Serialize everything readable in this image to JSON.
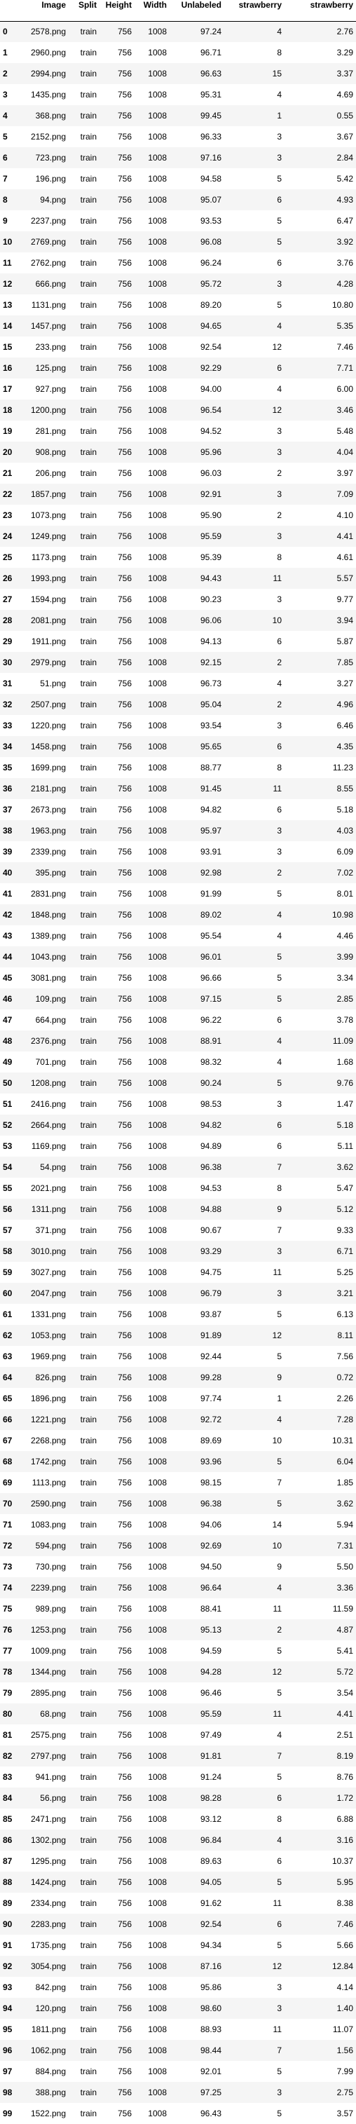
{
  "columns": [
    "",
    "Image",
    "Split",
    "Height",
    "Width",
    "Unlabeled",
    "strawberry",
    "strawberry"
  ],
  "rows": [
    [
      "0",
      "2578.png",
      "train",
      "756",
      "1008",
      "97.24",
      "4",
      "2.76"
    ],
    [
      "1",
      "2960.png",
      "train",
      "756",
      "1008",
      "96.71",
      "8",
      "3.29"
    ],
    [
      "2",
      "2994.png",
      "train",
      "756",
      "1008",
      "96.63",
      "15",
      "3.37"
    ],
    [
      "3",
      "1435.png",
      "train",
      "756",
      "1008",
      "95.31",
      "4",
      "4.69"
    ],
    [
      "4",
      "368.png",
      "train",
      "756",
      "1008",
      "99.45",
      "1",
      "0.55"
    ],
    [
      "5",
      "2152.png",
      "train",
      "756",
      "1008",
      "96.33",
      "3",
      "3.67"
    ],
    [
      "6",
      "723.png",
      "train",
      "756",
      "1008",
      "97.16",
      "3",
      "2.84"
    ],
    [
      "7",
      "196.png",
      "train",
      "756",
      "1008",
      "94.58",
      "5",
      "5.42"
    ],
    [
      "8",
      "94.png",
      "train",
      "756",
      "1008",
      "95.07",
      "6",
      "4.93"
    ],
    [
      "9",
      "2237.png",
      "train",
      "756",
      "1008",
      "93.53",
      "5",
      "6.47"
    ],
    [
      "10",
      "2769.png",
      "train",
      "756",
      "1008",
      "96.08",
      "5",
      "3.92"
    ],
    [
      "11",
      "2762.png",
      "train",
      "756",
      "1008",
      "96.24",
      "6",
      "3.76"
    ],
    [
      "12",
      "666.png",
      "train",
      "756",
      "1008",
      "95.72",
      "3",
      "4.28"
    ],
    [
      "13",
      "1131.png",
      "train",
      "756",
      "1008",
      "89.20",
      "5",
      "10.80"
    ],
    [
      "14",
      "1457.png",
      "train",
      "756",
      "1008",
      "94.65",
      "4",
      "5.35"
    ],
    [
      "15",
      "233.png",
      "train",
      "756",
      "1008",
      "92.54",
      "12",
      "7.46"
    ],
    [
      "16",
      "125.png",
      "train",
      "756",
      "1008",
      "92.29",
      "6",
      "7.71"
    ],
    [
      "17",
      "927.png",
      "train",
      "756",
      "1008",
      "94.00",
      "4",
      "6.00"
    ],
    [
      "18",
      "1200.png",
      "train",
      "756",
      "1008",
      "96.54",
      "12",
      "3.46"
    ],
    [
      "19",
      "281.png",
      "train",
      "756",
      "1008",
      "94.52",
      "3",
      "5.48"
    ],
    [
      "20",
      "908.png",
      "train",
      "756",
      "1008",
      "95.96",
      "3",
      "4.04"
    ],
    [
      "21",
      "206.png",
      "train",
      "756",
      "1008",
      "96.03",
      "2",
      "3.97"
    ],
    [
      "22",
      "1857.png",
      "train",
      "756",
      "1008",
      "92.91",
      "3",
      "7.09"
    ],
    [
      "23",
      "1073.png",
      "train",
      "756",
      "1008",
      "95.90",
      "2",
      "4.10"
    ],
    [
      "24",
      "1249.png",
      "train",
      "756",
      "1008",
      "95.59",
      "3",
      "4.41"
    ],
    [
      "25",
      "1173.png",
      "train",
      "756",
      "1008",
      "95.39",
      "8",
      "4.61"
    ],
    [
      "26",
      "1993.png",
      "train",
      "756",
      "1008",
      "94.43",
      "11",
      "5.57"
    ],
    [
      "27",
      "1594.png",
      "train",
      "756",
      "1008",
      "90.23",
      "3",
      "9.77"
    ],
    [
      "28",
      "2081.png",
      "train",
      "756",
      "1008",
      "96.06",
      "10",
      "3.94"
    ],
    [
      "29",
      "1911.png",
      "train",
      "756",
      "1008",
      "94.13",
      "6",
      "5.87"
    ],
    [
      "30",
      "2979.png",
      "train",
      "756",
      "1008",
      "92.15",
      "2",
      "7.85"
    ],
    [
      "31",
      "51.png",
      "train",
      "756",
      "1008",
      "96.73",
      "4",
      "3.27"
    ],
    [
      "32",
      "2507.png",
      "train",
      "756",
      "1008",
      "95.04",
      "2",
      "4.96"
    ],
    [
      "33",
      "1220.png",
      "train",
      "756",
      "1008",
      "93.54",
      "3",
      "6.46"
    ],
    [
      "34",
      "1458.png",
      "train",
      "756",
      "1008",
      "95.65",
      "6",
      "4.35"
    ],
    [
      "35",
      "1699.png",
      "train",
      "756",
      "1008",
      "88.77",
      "8",
      "11.23"
    ],
    [
      "36",
      "2181.png",
      "train",
      "756",
      "1008",
      "91.45",
      "11",
      "8.55"
    ],
    [
      "37",
      "2673.png",
      "train",
      "756",
      "1008",
      "94.82",
      "6",
      "5.18"
    ],
    [
      "38",
      "1963.png",
      "train",
      "756",
      "1008",
      "95.97",
      "3",
      "4.03"
    ],
    [
      "39",
      "2339.png",
      "train",
      "756",
      "1008",
      "93.91",
      "3",
      "6.09"
    ],
    [
      "40",
      "395.png",
      "train",
      "756",
      "1008",
      "92.98",
      "2",
      "7.02"
    ],
    [
      "41",
      "2831.png",
      "train",
      "756",
      "1008",
      "91.99",
      "5",
      "8.01"
    ],
    [
      "42",
      "1848.png",
      "train",
      "756",
      "1008",
      "89.02",
      "4",
      "10.98"
    ],
    [
      "43",
      "1389.png",
      "train",
      "756",
      "1008",
      "95.54",
      "4",
      "4.46"
    ],
    [
      "44",
      "1043.png",
      "train",
      "756",
      "1008",
      "96.01",
      "5",
      "3.99"
    ],
    [
      "45",
      "3081.png",
      "train",
      "756",
      "1008",
      "96.66",
      "5",
      "3.34"
    ],
    [
      "46",
      "109.png",
      "train",
      "756",
      "1008",
      "97.15",
      "5",
      "2.85"
    ],
    [
      "47",
      "664.png",
      "train",
      "756",
      "1008",
      "96.22",
      "6",
      "3.78"
    ],
    [
      "48",
      "2376.png",
      "train",
      "756",
      "1008",
      "88.91",
      "4",
      "11.09"
    ],
    [
      "49",
      "701.png",
      "train",
      "756",
      "1008",
      "98.32",
      "4",
      "1.68"
    ],
    [
      "50",
      "1208.png",
      "train",
      "756",
      "1008",
      "90.24",
      "5",
      "9.76"
    ],
    [
      "51",
      "2416.png",
      "train",
      "756",
      "1008",
      "98.53",
      "3",
      "1.47"
    ],
    [
      "52",
      "2664.png",
      "train",
      "756",
      "1008",
      "94.82",
      "6",
      "5.18"
    ],
    [
      "53",
      "1169.png",
      "train",
      "756",
      "1008",
      "94.89",
      "6",
      "5.11"
    ],
    [
      "54",
      "54.png",
      "train",
      "756",
      "1008",
      "96.38",
      "7",
      "3.62"
    ],
    [
      "55",
      "2021.png",
      "train",
      "756",
      "1008",
      "94.53",
      "8",
      "5.47"
    ],
    [
      "56",
      "1311.png",
      "train",
      "756",
      "1008",
      "94.88",
      "9",
      "5.12"
    ],
    [
      "57",
      "371.png",
      "train",
      "756",
      "1008",
      "90.67",
      "7",
      "9.33"
    ],
    [
      "58",
      "3010.png",
      "train",
      "756",
      "1008",
      "93.29",
      "3",
      "6.71"
    ],
    [
      "59",
      "3027.png",
      "train",
      "756",
      "1008",
      "94.75",
      "11",
      "5.25"
    ],
    [
      "60",
      "2047.png",
      "train",
      "756",
      "1008",
      "96.79",
      "3",
      "3.21"
    ],
    [
      "61",
      "1331.png",
      "train",
      "756",
      "1008",
      "93.87",
      "5",
      "6.13"
    ],
    [
      "62",
      "1053.png",
      "train",
      "756",
      "1008",
      "91.89",
      "12",
      "8.11"
    ],
    [
      "63",
      "1969.png",
      "train",
      "756",
      "1008",
      "92.44",
      "5",
      "7.56"
    ],
    [
      "64",
      "826.png",
      "train",
      "756",
      "1008",
      "99.28",
      "9",
      "0.72"
    ],
    [
      "65",
      "1896.png",
      "train",
      "756",
      "1008",
      "97.74",
      "1",
      "2.26"
    ],
    [
      "66",
      "1221.png",
      "train",
      "756",
      "1008",
      "92.72",
      "4",
      "7.28"
    ],
    [
      "67",
      "2268.png",
      "train",
      "756",
      "1008",
      "89.69",
      "10",
      "10.31"
    ],
    [
      "68",
      "1742.png",
      "train",
      "756",
      "1008",
      "93.96",
      "5",
      "6.04"
    ],
    [
      "69",
      "1113.png",
      "train",
      "756",
      "1008",
      "98.15",
      "7",
      "1.85"
    ],
    [
      "70",
      "2590.png",
      "train",
      "756",
      "1008",
      "96.38",
      "5",
      "3.62"
    ],
    [
      "71",
      "1083.png",
      "train",
      "756",
      "1008",
      "94.06",
      "14",
      "5.94"
    ],
    [
      "72",
      "594.png",
      "train",
      "756",
      "1008",
      "92.69",
      "10",
      "7.31"
    ],
    [
      "73",
      "730.png",
      "train",
      "756",
      "1008",
      "94.50",
      "9",
      "5.50"
    ],
    [
      "74",
      "2239.png",
      "train",
      "756",
      "1008",
      "96.64",
      "4",
      "3.36"
    ],
    [
      "75",
      "989.png",
      "train",
      "756",
      "1008",
      "88.41",
      "11",
      "11.59"
    ],
    [
      "76",
      "1253.png",
      "train",
      "756",
      "1008",
      "95.13",
      "2",
      "4.87"
    ],
    [
      "77",
      "1009.png",
      "train",
      "756",
      "1008",
      "94.59",
      "5",
      "5.41"
    ],
    [
      "78",
      "1344.png",
      "train",
      "756",
      "1008",
      "94.28",
      "12",
      "5.72"
    ],
    [
      "79",
      "2895.png",
      "train",
      "756",
      "1008",
      "96.46",
      "5",
      "3.54"
    ],
    [
      "80",
      "68.png",
      "train",
      "756",
      "1008",
      "95.59",
      "11",
      "4.41"
    ],
    [
      "81",
      "2575.png",
      "train",
      "756",
      "1008",
      "97.49",
      "4",
      "2.51"
    ],
    [
      "82",
      "2797.png",
      "train",
      "756",
      "1008",
      "91.81",
      "7",
      "8.19"
    ],
    [
      "83",
      "941.png",
      "train",
      "756",
      "1008",
      "91.24",
      "5",
      "8.76"
    ],
    [
      "84",
      "56.png",
      "train",
      "756",
      "1008",
      "98.28",
      "6",
      "1.72"
    ],
    [
      "85",
      "2471.png",
      "train",
      "756",
      "1008",
      "93.12",
      "8",
      "6.88"
    ],
    [
      "86",
      "1302.png",
      "train",
      "756",
      "1008",
      "96.84",
      "4",
      "3.16"
    ],
    [
      "87",
      "1295.png",
      "train",
      "756",
      "1008",
      "89.63",
      "6",
      "10.37"
    ],
    [
      "88",
      "1424.png",
      "train",
      "756",
      "1008",
      "94.05",
      "5",
      "5.95"
    ],
    [
      "89",
      "2334.png",
      "train",
      "756",
      "1008",
      "91.62",
      "11",
      "8.38"
    ],
    [
      "90",
      "2283.png",
      "train",
      "756",
      "1008",
      "92.54",
      "6",
      "7.46"
    ],
    [
      "91",
      "1735.png",
      "train",
      "756",
      "1008",
      "94.34",
      "5",
      "5.66"
    ],
    [
      "92",
      "3054.png",
      "train",
      "756",
      "1008",
      "87.16",
      "12",
      "12.84"
    ],
    [
      "93",
      "842.png",
      "train",
      "756",
      "1008",
      "95.86",
      "3",
      "4.14"
    ],
    [
      "94",
      "120.png",
      "train",
      "756",
      "1008",
      "98.60",
      "3",
      "1.40"
    ],
    [
      "95",
      "1811.png",
      "train",
      "756",
      "1008",
      "88.93",
      "11",
      "11.07"
    ],
    [
      "96",
      "1062.png",
      "train",
      "756",
      "1008",
      "98.44",
      "7",
      "1.56"
    ],
    [
      "97",
      "884.png",
      "train",
      "756",
      "1008",
      "92.01",
      "5",
      "7.99"
    ],
    [
      "98",
      "388.png",
      "train",
      "756",
      "1008",
      "97.25",
      "3",
      "2.75"
    ],
    [
      "99",
      "1522.png",
      "train",
      "756",
      "1008",
      "96.43",
      "5",
      "3.57"
    ]
  ]
}
